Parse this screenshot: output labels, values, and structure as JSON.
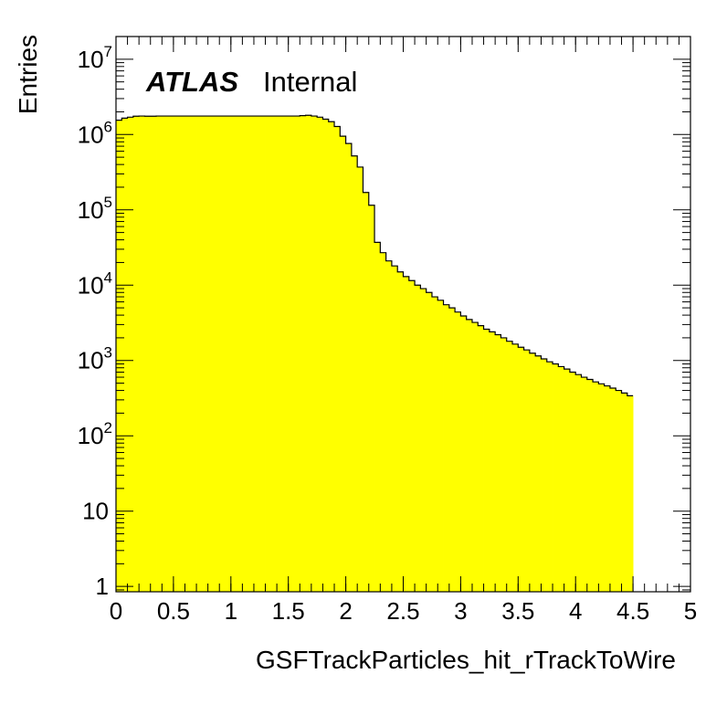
{
  "chart_data": {
    "type": "histogram",
    "title": "",
    "xlabel": "GSFTrackParticles_hit_rTrackToWire",
    "ylabel": "Entries",
    "annotation": {
      "experiment": "ATLAS",
      "status": "Internal"
    },
    "x_range": [
      0,
      5
    ],
    "y_range": [
      0.85,
      20000000
    ],
    "y_scale": "log",
    "fill_color": "#ffff00",
    "line_color": "#000000",
    "bin_edges_start": 0,
    "bin_width": 0.05,
    "values": [
      1550000,
      1650000,
      1700000,
      1750000,
      1760000,
      1750000,
      1750000,
      1760000,
      1760000,
      1760000,
      1760000,
      1760000,
      1760000,
      1760000,
      1760000,
      1760000,
      1760000,
      1760000,
      1760000,
      1760000,
      1760000,
      1760000,
      1760000,
      1760000,
      1760000,
      1760000,
      1760000,
      1760000,
      1760000,
      1760000,
      1760000,
      1760000,
      1780000,
      1800000,
      1760000,
      1700000,
      1600000,
      1480000,
      1280000,
      950000,
      760000,
      520000,
      370000,
      170000,
      115000,
      37000,
      27000,
      21000,
      18000,
      15000,
      13000,
      11500,
      10000,
      9000,
      8000,
      7000,
      6300,
      5500,
      5000,
      4400,
      3900,
      3500,
      3200,
      2900,
      2600,
      2400,
      2200,
      2000,
      1800,
      1650,
      1500,
      1380,
      1250,
      1150,
      1050,
      960,
      900,
      830,
      770,
      700,
      650,
      600,
      560,
      520,
      490,
      460,
      430,
      400,
      370,
      340
    ],
    "x_ticks": [
      "0",
      "0.5",
      "1",
      "1.5",
      "2",
      "2.5",
      "3",
      "3.5",
      "4",
      "4.5",
      "5"
    ],
    "y_ticks": [
      {
        "value": 1,
        "base": "1",
        "exp": ""
      },
      {
        "value": 10,
        "base": "10",
        "exp": ""
      },
      {
        "value": 100,
        "base": "10",
        "exp": "2"
      },
      {
        "value": 1000,
        "base": "10",
        "exp": "3"
      },
      {
        "value": 10000,
        "base": "10",
        "exp": "4"
      },
      {
        "value": 100000,
        "base": "10",
        "exp": "5"
      },
      {
        "value": 1000000,
        "base": "10",
        "exp": "6"
      },
      {
        "value": 10000000,
        "base": "10",
        "exp": "7"
      }
    ]
  }
}
